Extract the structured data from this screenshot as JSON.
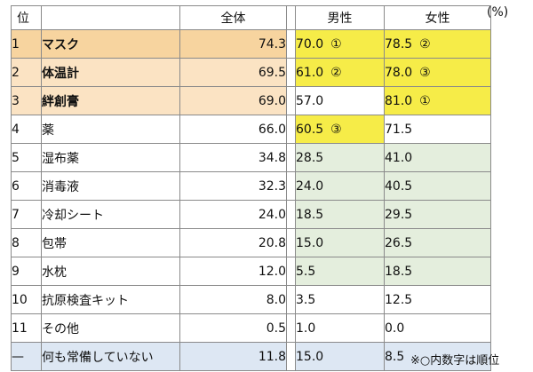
{
  "unit": "(%)",
  "headers": {
    "rank": "位",
    "item": "",
    "all": "全体",
    "male": "男性",
    "female": "女性"
  },
  "rows": [
    {
      "rank": "1",
      "item": "マスク",
      "all": "74.3",
      "male": "70.0",
      "male_mark": "①",
      "female": "78.5",
      "female_mark": "②"
    },
    {
      "rank": "2",
      "item": "体温計",
      "all": "69.5",
      "male": "61.0",
      "male_mark": "②",
      "female": "78.0",
      "female_mark": "③"
    },
    {
      "rank": "3",
      "item": "絆創膏",
      "all": "69.0",
      "male": "57.0",
      "male_mark": "",
      "female": "81.0",
      "female_mark": "①"
    },
    {
      "rank": "4",
      "item": "薬",
      "all": "66.0",
      "male": "60.5",
      "male_mark": "③",
      "female": "71.5",
      "female_mark": ""
    },
    {
      "rank": "5",
      "item": "湿布薬",
      "all": "34.8",
      "male": "28.5",
      "male_mark": "",
      "female": "41.0",
      "female_mark": ""
    },
    {
      "rank": "6",
      "item": "消毒液",
      "all": "32.3",
      "male": "24.0",
      "male_mark": "",
      "female": "40.5",
      "female_mark": ""
    },
    {
      "rank": "7",
      "item": "冷却シート",
      "all": "24.0",
      "male": "18.5",
      "male_mark": "",
      "female": "29.5",
      "female_mark": ""
    },
    {
      "rank": "8",
      "item": "包帯",
      "all": "20.8",
      "male": "15.0",
      "male_mark": "",
      "female": "26.5",
      "female_mark": ""
    },
    {
      "rank": "9",
      "item": "水枕",
      "all": "12.0",
      "male": "5.5",
      "male_mark": "",
      "female": "18.5",
      "female_mark": ""
    },
    {
      "rank": "10",
      "item": "抗原検査キット",
      "all": "8.0",
      "male": "3.5",
      "male_mark": "",
      "female": "12.5",
      "female_mark": ""
    },
    {
      "rank": "11",
      "item": "その他",
      "all": "0.5",
      "male": "1.0",
      "male_mark": "",
      "female": "0.0",
      "female_mark": ""
    },
    {
      "rank": "—",
      "item": "何も常備していない",
      "all": "11.8",
      "male": "15.0",
      "male_mark": "",
      "female": "8.5",
      "female_mark": ""
    }
  ],
  "note": "※○内数字は順位",
  "colors": {
    "top_rank_fill": "#f7d49f",
    "top_fill": "#fbe3c3",
    "highlight_yellow": "#f6ec48",
    "green_fill": "#e4eedd",
    "none_row_fill": "#dde7f3"
  }
}
